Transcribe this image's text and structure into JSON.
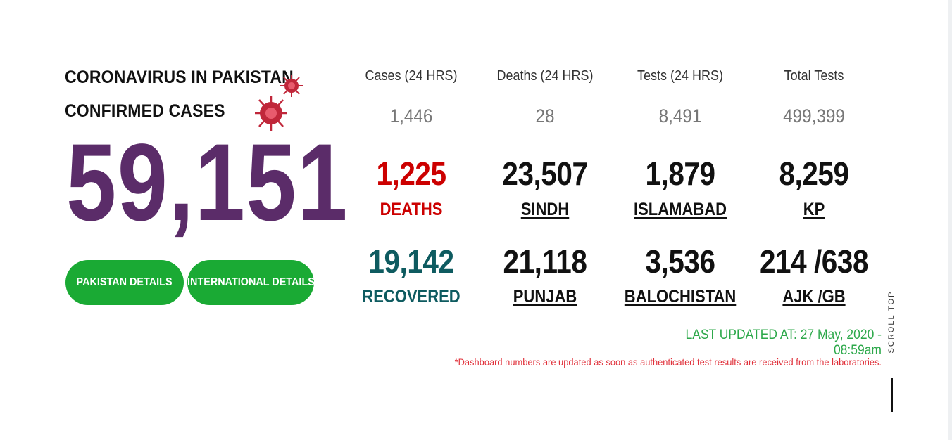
{
  "hero": {
    "title_line1": "CORONAVIRUS IN PAKISTAN",
    "title_line2": "CONFIRMED CASES",
    "confirmed": "59,151",
    "btn_pakistan": "PAKISTAN DETAILS",
    "btn_international": "INTERNATIONAL DETAILS"
  },
  "top": [
    {
      "label": "Cases (24 HRS)",
      "value": "1,446"
    },
    {
      "label": "Deaths (24 HRS)",
      "value": "28"
    },
    {
      "label": "Tests (24 HRS)",
      "value": "8,491"
    },
    {
      "label": "Total Tests",
      "value": "499,399"
    }
  ],
  "row1": [
    {
      "value": "1,225",
      "label": "DEATHS"
    },
    {
      "value": "23,507",
      "label": "SINDH"
    },
    {
      "value": "1,879",
      "label": "ISLAMABAD"
    },
    {
      "value": "8,259",
      "label": "KP"
    }
  ],
  "row2": [
    {
      "value": "19,142",
      "label": "RECOVERED"
    },
    {
      "value": "21,118",
      "label": "PUNJAB"
    },
    {
      "value": "3,536",
      "label": "BALOCHISTAN"
    },
    {
      "value": "214 /638",
      "label": "AJK /GB"
    }
  ],
  "updated": "LAST UPDATED AT: 27 May, 2020 - 08:59am",
  "note": "*Dashboard numbers are updated as soon as authenticated test results are received from the laboratories.",
  "scroll_top": "SCROLL TOP",
  "colors": {
    "purple": "#5b2c69",
    "green": "#1aaa34",
    "red": "#cc0000",
    "teal": "#0e5b60",
    "virus": "#c0273a"
  },
  "icons": [
    "virus-icon",
    "virus-icon"
  ]
}
